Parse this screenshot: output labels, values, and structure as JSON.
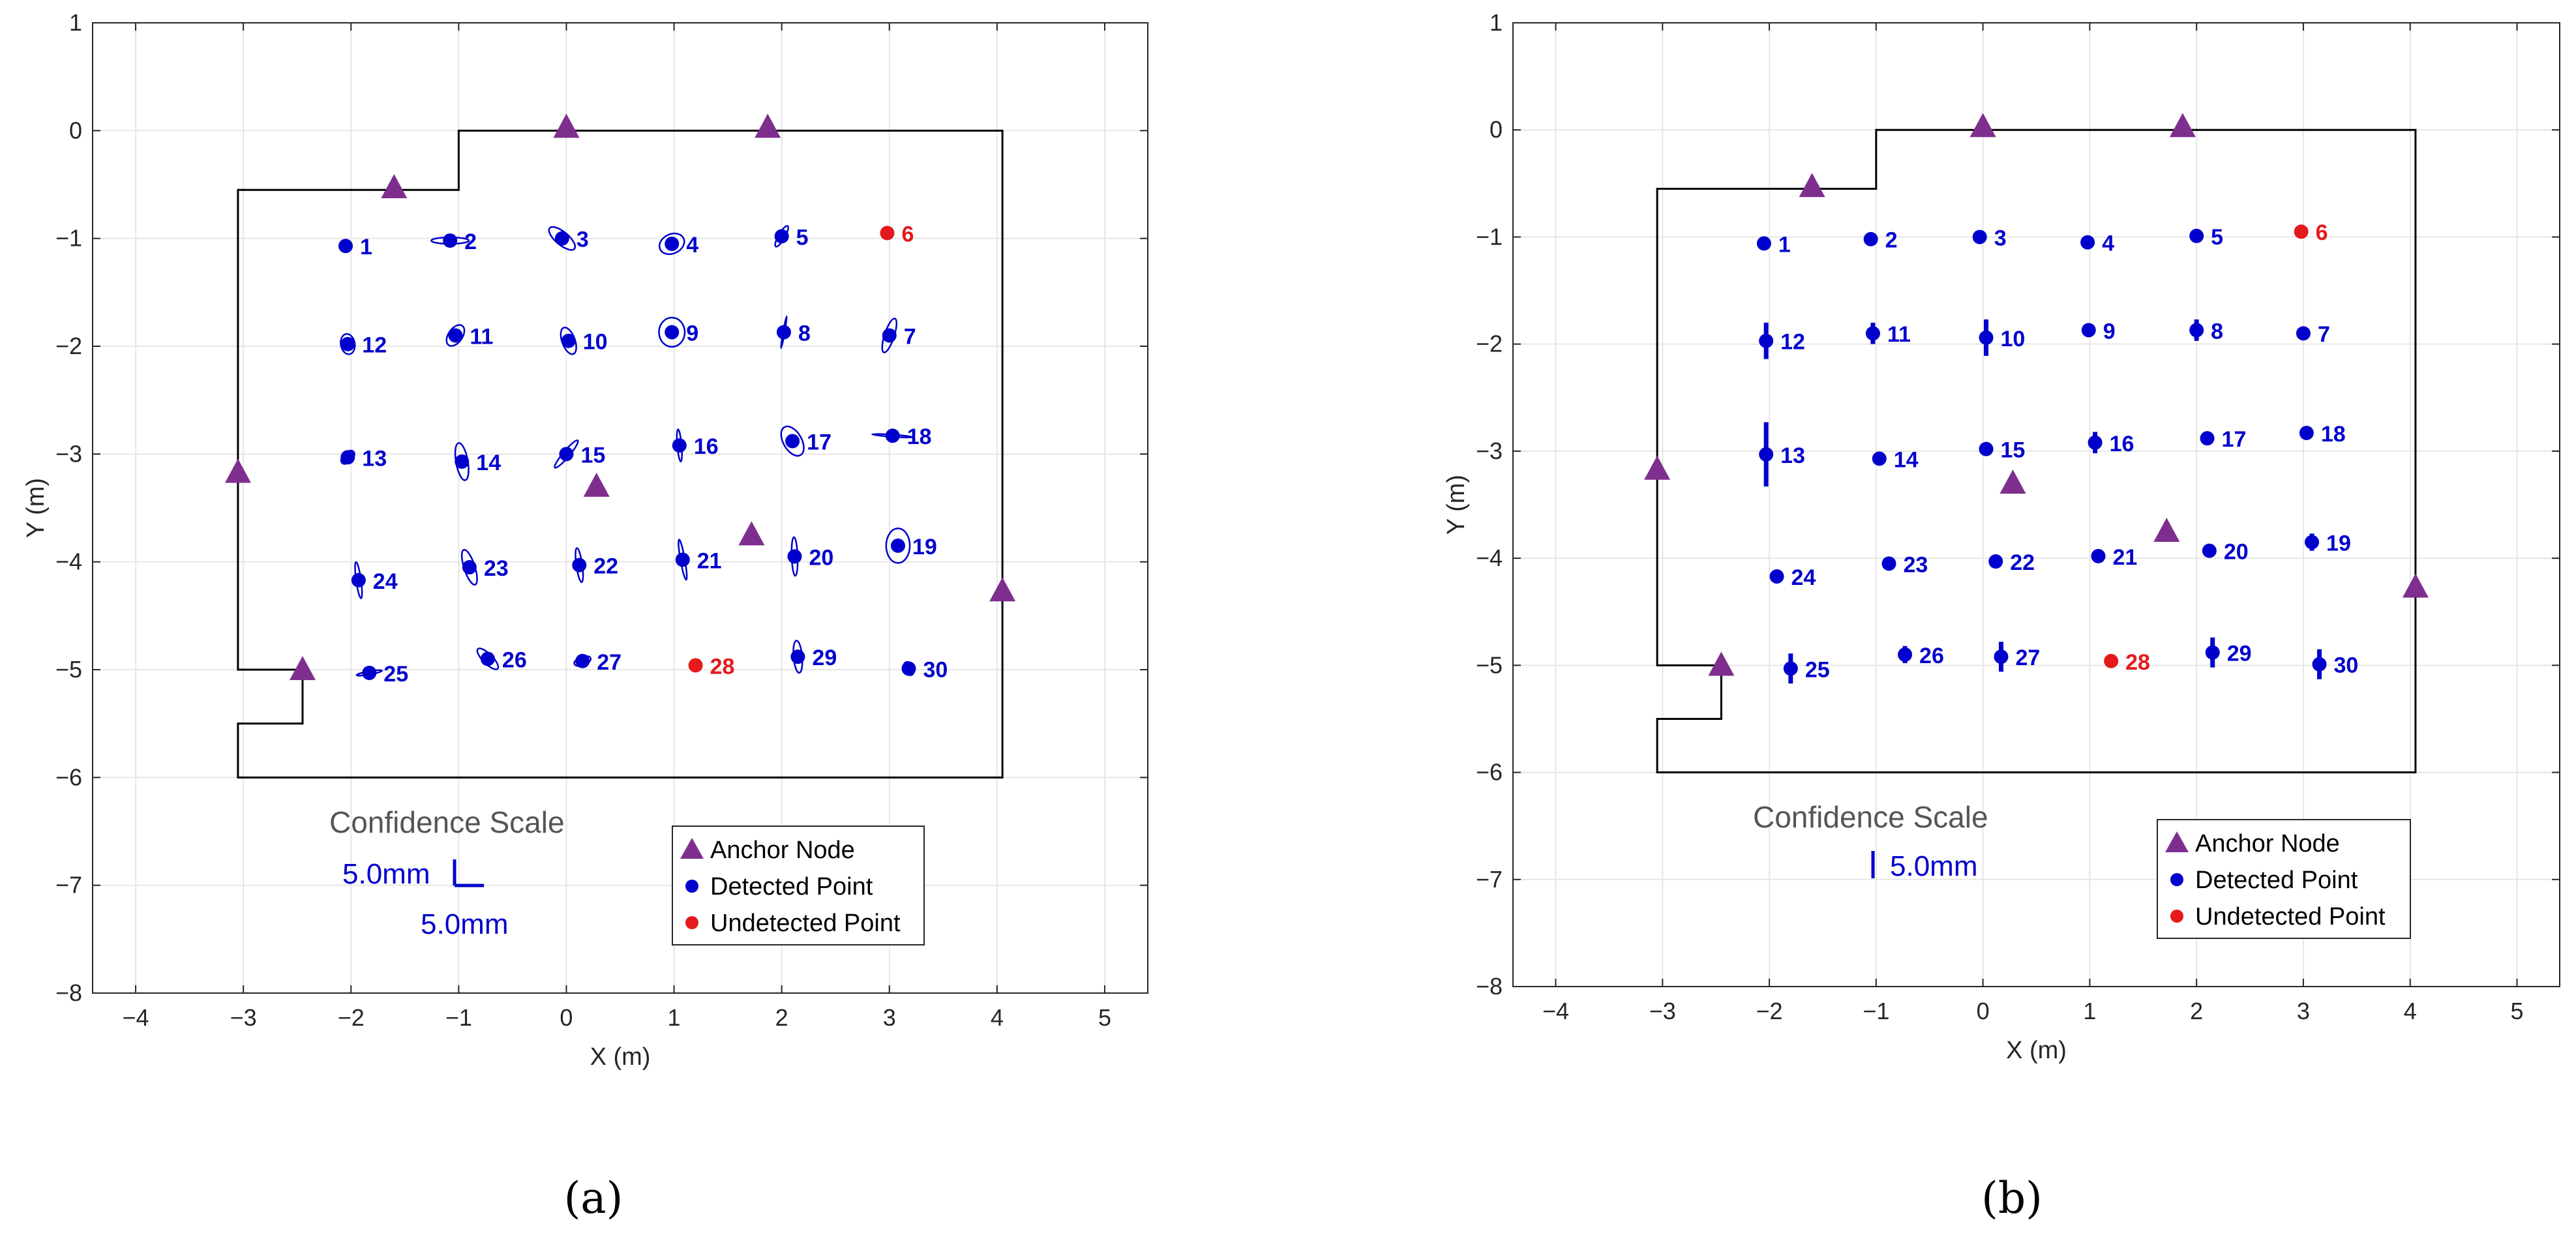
{
  "colors": {
    "detected": "#0000cc",
    "undetected": "#e41a1c",
    "anchor": "#7e2f8e",
    "room": "#000000",
    "grid": "#e6e6e6"
  },
  "chart_data": [
    {
      "type": "scatter",
      "caption": "(a)",
      "xlabel": "X (m)",
      "ylabel": "Y (m)",
      "xlim": [
        -4.4,
        5.4
      ],
      "ylim": [
        -8,
        1
      ],
      "xticks": [
        -4,
        -3,
        -2,
        -1,
        0,
        1,
        2,
        3,
        4,
        5
      ],
      "yticks": [
        1,
        0,
        -1,
        -2,
        -3,
        -4,
        -5,
        -6,
        -7,
        -8
      ],
      "grid": true,
      "legend": {
        "placement": "bottom-right",
        "entries": [
          "Anchor Node",
          "Detected Point",
          "Undetected Point"
        ]
      },
      "scale": {
        "title": "Confidence Scale",
        "label_y": "5.0mm",
        "label_x": "5.0mm"
      },
      "uncertainty": "ellipse",
      "room_outline": [
        [
          -3.05,
          -0.55
        ],
        [
          -1.0,
          -0.55
        ],
        [
          -1.0,
          0
        ],
        [
          4.05,
          0
        ],
        [
          4.05,
          -6.0
        ],
        [
          -3.05,
          -6.0
        ],
        [
          -3.05,
          -5.5
        ],
        [
          -2.45,
          -5.5
        ],
        [
          -2.45,
          -5.0
        ],
        [
          -3.05,
          -5.0
        ]
      ],
      "anchors": [
        [
          -1.6,
          -0.53
        ],
        [
          0.0,
          0.03
        ],
        [
          1.87,
          0.03
        ],
        [
          -3.05,
          -3.17
        ],
        [
          0.28,
          -3.3
        ],
        [
          1.72,
          -3.75
        ],
        [
          4.05,
          -4.27
        ],
        [
          -2.45,
          -5.0
        ]
      ],
      "detected": [
        {
          "label": "1",
          "x": -2.05,
          "y": -1.07,
          "rx": 0.0,
          "ry": 0.0,
          "rot": 0
        },
        {
          "label": "2",
          "x": -1.08,
          "y": -1.02,
          "rx": 0.35,
          "ry": 0.06,
          "rot": 0
        },
        {
          "label": "3",
          "x": -0.04,
          "y": -1.0,
          "rx": 0.3,
          "ry": 0.12,
          "rot": 40
        },
        {
          "label": "4",
          "x": 0.98,
          "y": -1.05,
          "rx": 0.24,
          "ry": 0.18,
          "rot": -25
        },
        {
          "label": "5",
          "x": 2.0,
          "y": -0.98,
          "rx": 0.22,
          "ry": 0.06,
          "rot": -60
        },
        {
          "label": "7",
          "x": 3.0,
          "y": -1.9,
          "rx": 0.33,
          "ry": 0.09,
          "rot": -72
        },
        {
          "label": "8",
          "x": 2.02,
          "y": -1.87,
          "rx": 0.3,
          "ry": 0.015,
          "rot": -80
        },
        {
          "label": "9",
          "x": 0.98,
          "y": -1.87,
          "rx": 0.24,
          "ry": 0.27,
          "rot": 0
        },
        {
          "label": "10",
          "x": 0.02,
          "y": -1.95,
          "rx": 0.26,
          "ry": 0.12,
          "rot": 70
        },
        {
          "label": "11",
          "x": -1.03,
          "y": -1.9,
          "rx": 0.22,
          "ry": 0.13,
          "rot": -55
        },
        {
          "label": "12",
          "x": -2.03,
          "y": -1.98,
          "rx": 0.19,
          "ry": 0.13,
          "rot": 80
        },
        {
          "label": "13",
          "x": -2.03,
          "y": -3.03,
          "rx": 0.15,
          "ry": 0.09,
          "rot": -45
        },
        {
          "label": "14",
          "x": -0.97,
          "y": -3.07,
          "rx": 0.35,
          "ry": 0.11,
          "rot": 80
        },
        {
          "label": "15",
          "x": 0.0,
          "y": -3.0,
          "rx": 0.33,
          "ry": 0.06,
          "rot": -50
        },
        {
          "label": "16",
          "x": 1.05,
          "y": -2.92,
          "rx": 0.3,
          "ry": 0.04,
          "rot": 85
        },
        {
          "label": "17",
          "x": 2.1,
          "y": -2.88,
          "rx": 0.3,
          "ry": 0.17,
          "rot": 60
        },
        {
          "label": "18",
          "x": 3.03,
          "y": -2.83,
          "rx": 0.38,
          "ry": 0.02,
          "rot": 4
        },
        {
          "label": "19",
          "x": 3.08,
          "y": -3.85,
          "rx": 0.22,
          "ry": 0.32,
          "rot": 0
        },
        {
          "label": "20",
          "x": 2.12,
          "y": -3.95,
          "rx": 0.36,
          "ry": 0.055,
          "rot": 88
        },
        {
          "label": "21",
          "x": 1.08,
          "y": -3.98,
          "rx": 0.38,
          "ry": 0.04,
          "rot": 80
        },
        {
          "label": "22",
          "x": 0.12,
          "y": -4.03,
          "rx": 0.32,
          "ry": 0.055,
          "rot": 82
        },
        {
          "label": "23",
          "x": -0.9,
          "y": -4.05,
          "rx": 0.34,
          "ry": 0.1,
          "rot": 72
        },
        {
          "label": "24",
          "x": -1.93,
          "y": -4.17,
          "rx": 0.34,
          "ry": 0.045,
          "rot": 82
        },
        {
          "label": "25",
          "x": -1.83,
          "y": -5.03,
          "rx": 0.24,
          "ry": 0.03,
          "rot": -10
        },
        {
          "label": "26",
          "x": -0.73,
          "y": -4.9,
          "rx": 0.26,
          "ry": 0.09,
          "rot": 45
        },
        {
          "label": "27",
          "x": 0.15,
          "y": -4.92,
          "rx": 0.16,
          "ry": 0.08,
          "rot": -20
        },
        {
          "label": "29",
          "x": 2.15,
          "y": -4.88,
          "rx": 0.3,
          "ry": 0.08,
          "rot": 85
        },
        {
          "label": "30",
          "x": 3.18,
          "y": -4.99,
          "rx": 0.13,
          "ry": 0.09,
          "rot": 65
        }
      ],
      "undetected": [
        {
          "label": "6",
          "x": 2.98,
          "y": -0.95
        },
        {
          "label": "28",
          "x": 1.2,
          "y": -4.96
        }
      ]
    },
    {
      "type": "scatter",
      "caption": "(b)",
      "xlabel": "X (m)",
      "ylabel": "Y (m)",
      "xlim": [
        -4.4,
        5.4
      ],
      "ylim": [
        -8,
        1
      ],
      "xticks": [
        -4,
        -3,
        -2,
        -1,
        0,
        1,
        2,
        3,
        4,
        5
      ],
      "yticks": [
        1,
        0,
        -1,
        -2,
        -3,
        -4,
        -5,
        -6,
        -7,
        -8
      ],
      "grid": true,
      "legend": {
        "placement": "bottom-right",
        "entries": [
          "Anchor Node",
          "Detected Point",
          "Undetected Point"
        ]
      },
      "scale": {
        "title": "Confidence Scale",
        "label_y": "5.0mm"
      },
      "uncertainty": "vertical-bar",
      "room_outline": [
        [
          -3.05,
          -0.55
        ],
        [
          -1.0,
          -0.55
        ],
        [
          -1.0,
          0
        ],
        [
          4.05,
          0
        ],
        [
          4.05,
          -6.0
        ],
        [
          -3.05,
          -6.0
        ],
        [
          -3.05,
          -5.5
        ],
        [
          -2.45,
          -5.5
        ],
        [
          -2.45,
          -5.0
        ],
        [
          -3.05,
          -5.0
        ]
      ],
      "anchors": [
        [
          -1.6,
          -0.53
        ],
        [
          0.0,
          0.03
        ],
        [
          1.87,
          0.03
        ],
        [
          -3.05,
          -3.17
        ],
        [
          0.28,
          -3.3
        ],
        [
          1.72,
          -3.75
        ],
        [
          4.05,
          -4.27
        ],
        [
          -2.45,
          -5.0
        ]
      ],
      "detected": [
        {
          "label": "1",
          "x": -2.05,
          "y": -1.06,
          "err": 0.0
        },
        {
          "label": "2",
          "x": -1.05,
          "y": -1.02,
          "err": 0.0
        },
        {
          "label": "3",
          "x": -0.03,
          "y": -1.0,
          "err": 0.0
        },
        {
          "label": "4",
          "x": 0.98,
          "y": -1.05,
          "err": 0.0
        },
        {
          "label": "5",
          "x": 2.0,
          "y": -0.99,
          "err": 0.0
        },
        {
          "label": "7",
          "x": 3.0,
          "y": -1.9,
          "err": 0.0
        },
        {
          "label": "8",
          "x": 2.0,
          "y": -1.87,
          "err": 0.1
        },
        {
          "label": "9",
          "x": 0.99,
          "y": -1.87,
          "err": 0.0
        },
        {
          "label": "10",
          "x": 0.03,
          "y": -1.94,
          "err": 0.17
        },
        {
          "label": "11",
          "x": -1.03,
          "y": -1.9,
          "err": 0.1
        },
        {
          "label": "12",
          "x": -2.03,
          "y": -1.97,
          "err": 0.17
        },
        {
          "label": "13",
          "x": -2.03,
          "y": -3.03,
          "err": 0.3
        },
        {
          "label": "14",
          "x": -0.97,
          "y": -3.07,
          "err": 0.0
        },
        {
          "label": "15",
          "x": 0.03,
          "y": -2.98,
          "err": 0.0
        },
        {
          "label": "16",
          "x": 1.05,
          "y": -2.92,
          "err": 0.1
        },
        {
          "label": "17",
          "x": 2.1,
          "y": -2.88,
          "err": 0.0
        },
        {
          "label": "18",
          "x": 3.03,
          "y": -2.83,
          "err": 0.0
        },
        {
          "label": "19",
          "x": 3.08,
          "y": -3.85,
          "err": 0.08
        },
        {
          "label": "20",
          "x": 2.12,
          "y": -3.93,
          "err": 0.0
        },
        {
          "label": "21",
          "x": 1.08,
          "y": -3.98,
          "err": 0.0
        },
        {
          "label": "22",
          "x": 0.12,
          "y": -4.03,
          "err": 0.0
        },
        {
          "label": "23",
          "x": -0.88,
          "y": -4.05,
          "err": 0.0
        },
        {
          "label": "24",
          "x": -1.93,
          "y": -4.17,
          "err": 0.0
        },
        {
          "label": "25",
          "x": -1.8,
          "y": -5.03,
          "err": 0.14
        },
        {
          "label": "26",
          "x": -0.73,
          "y": -4.9,
          "err": 0.08
        },
        {
          "label": "27",
          "x": 0.17,
          "y": -4.92,
          "err": 0.14
        },
        {
          "label": "29",
          "x": 2.15,
          "y": -4.88,
          "err": 0.14
        },
        {
          "label": "30",
          "x": 3.15,
          "y": -4.99,
          "err": 0.14
        }
      ],
      "undetected": [
        {
          "label": "6",
          "x": 2.98,
          "y": -0.95
        },
        {
          "label": "28",
          "x": 1.2,
          "y": -4.96
        }
      ]
    }
  ]
}
